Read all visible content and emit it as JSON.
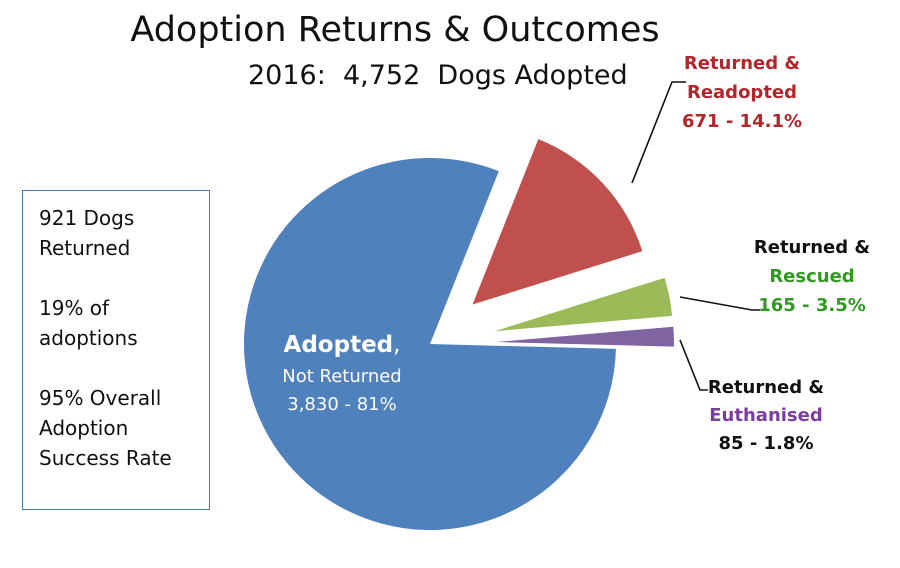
{
  "chart_data": {
    "type": "pie",
    "title": "Adoption Returns & Outcomes",
    "subtitle": "2016:  4,752  Dogs Adopted",
    "slices": [
      {
        "key": "adopted",
        "bold": "Adopted",
        "rest": ",",
        "line2": "Not Returned",
        "line3": "3,830 - 81%",
        "value": 3830,
        "percent": 81,
        "color": "#4f81bd",
        "label_color": "#ffffff",
        "exploded": false
      },
      {
        "key": "readopted",
        "line1": "Returned &",
        "line2": "Readopted",
        "line3": "671 - 14.1%",
        "value": 671,
        "percent": 14.1,
        "color": "#c0504d",
        "label_color": "#b0262a",
        "exploded": true
      },
      {
        "key": "rescued",
        "line1": "Returned &",
        "line2": "Rescued",
        "line3": "165 - 3.5%",
        "value": 165,
        "percent": 3.5,
        "color": "#9bbb59",
        "label_color": "#2e9a1e",
        "exploded": true
      },
      {
        "key": "euthanised",
        "line1": "Returned &",
        "line2": "Euthanised",
        "line3": "85 - 1.8%",
        "value": 85,
        "percent": 1.8,
        "color": "#8064a2",
        "label_color": "#7b3d9f",
        "exploded": true
      }
    ]
  },
  "info_box": {
    "line1": "921 Dogs",
    "line2": "Returned",
    "line3": "19% of",
    "line4": "adoptions",
    "line5": "95% Overall",
    "line6": "Adoption",
    "line7": "Success Rate"
  }
}
